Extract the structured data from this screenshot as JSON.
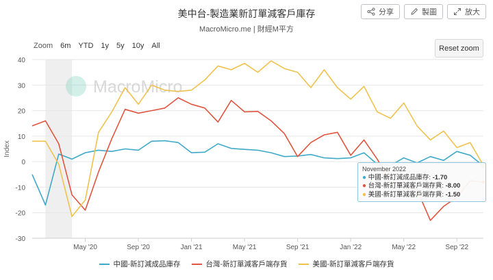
{
  "header": {
    "title": "美中台-製造業新訂單減客戶庫存",
    "subtitle": "MacroMicro.me | 財經M平方",
    "buttons": [
      {
        "label": "分享",
        "icon": "share-icon"
      },
      {
        "label": "製圖",
        "icon": "pencil-icon"
      },
      {
        "label": "放大",
        "icon": "expand-icon"
      }
    ]
  },
  "zoom": {
    "label": "Zoom",
    "options": [
      "6m",
      "YTD",
      "1y",
      "5y",
      "10y",
      "All"
    ],
    "reset_label": "Reset zoom"
  },
  "watermark": "MacroMicro",
  "chart_data": {
    "type": "line",
    "title": "美中台-製造業新訂單減客戶庫存",
    "ylabel": "Index",
    "ylim": [
      -30,
      40
    ],
    "yticks": [
      -30,
      -20,
      -10,
      0,
      10,
      20,
      30,
      40
    ],
    "xrange": [
      "2020-01",
      "2022-11"
    ],
    "xticks": [
      {
        "date": "2020-05",
        "label": "May '20"
      },
      {
        "date": "2020-09",
        "label": "Sep '20"
      },
      {
        "date": "2021-01",
        "label": "Jan '21"
      },
      {
        "date": "2021-05",
        "label": "May '21"
      },
      {
        "date": "2021-09",
        "label": "Sep '21"
      },
      {
        "date": "2022-01",
        "label": "Jan '22"
      },
      {
        "date": "2022-05",
        "label": "May '22"
      },
      {
        "date": "2022-09",
        "label": "Sep '22"
      }
    ],
    "shaded_band": [
      "2020-02",
      "2020-04"
    ],
    "grid": true,
    "legend_position": "bottom",
    "x": [
      "2020-01",
      "2020-02",
      "2020-03",
      "2020-04",
      "2020-05",
      "2020-06",
      "2020-07",
      "2020-08",
      "2020-09",
      "2020-10",
      "2020-11",
      "2020-12",
      "2021-01",
      "2021-02",
      "2021-03",
      "2021-04",
      "2021-05",
      "2021-06",
      "2021-07",
      "2021-08",
      "2021-09",
      "2021-10",
      "2021-11",
      "2021-12",
      "2022-01",
      "2022-02",
      "2022-03",
      "2022-04",
      "2022-05",
      "2022-06",
      "2022-07",
      "2022-08",
      "2022-09",
      "2022-10",
      "2022-11"
    ],
    "series": [
      {
        "name": "中國-新訂減成品庫存",
        "color": "#3fa9c9",
        "values": [
          -5,
          -17,
          3,
          1,
          3.5,
          4.5,
          4,
          5,
          4.5,
          8,
          8.2,
          7.5,
          3.5,
          3.7,
          7,
          5.2,
          4.8,
          4.5,
          3.5,
          2,
          2.2,
          2.8,
          1.5,
          1.2,
          1.5,
          3.5,
          -1,
          -1.5,
          1.5,
          -0.5,
          2,
          0.5,
          4,
          2.5,
          -1.7
        ]
      },
      {
        "name": "台灣-新訂單減客戶端存貨",
        "color": "#e0553f",
        "values": [
          14,
          16,
          7,
          -13,
          -19,
          -4,
          9,
          20.5,
          19,
          20,
          21,
          25,
          22.5,
          21,
          15.5,
          24,
          19.5,
          19.7,
          16,
          11,
          2,
          7.5,
          10.5,
          11.5,
          2.5,
          8.5,
          1,
          -8,
          -9.5,
          -11,
          -23,
          -17.5,
          -14,
          -7.5,
          -8
        ]
      },
      {
        "name": "美國-新訂單減客戶端存貨",
        "color": "#efc24d",
        "values": [
          8,
          8,
          -1,
          -21.5,
          -15,
          11.5,
          19.5,
          29,
          22.5,
          30,
          28,
          27.5,
          28,
          32,
          37.5,
          36,
          38.5,
          35,
          39.5,
          36.5,
          35,
          29,
          36,
          29,
          24.5,
          29.5,
          19.5,
          17,
          23,
          14,
          8.5,
          12,
          5.5,
          7.5,
          -1.5
        ]
      }
    ],
    "tooltip": {
      "date": "November 2022",
      "rows": [
        {
          "label": "中國-新訂減成品庫存:",
          "value": "-1.70",
          "color": "#3fa9c9"
        },
        {
          "label": "台灣-新訂單減客戶端存貨:",
          "value": "-8.00",
          "color": "#e0553f"
        },
        {
          "label": "美國-新訂單減客戶端存貨:",
          "value": "-1.50",
          "color": "#efc24d"
        }
      ]
    }
  }
}
